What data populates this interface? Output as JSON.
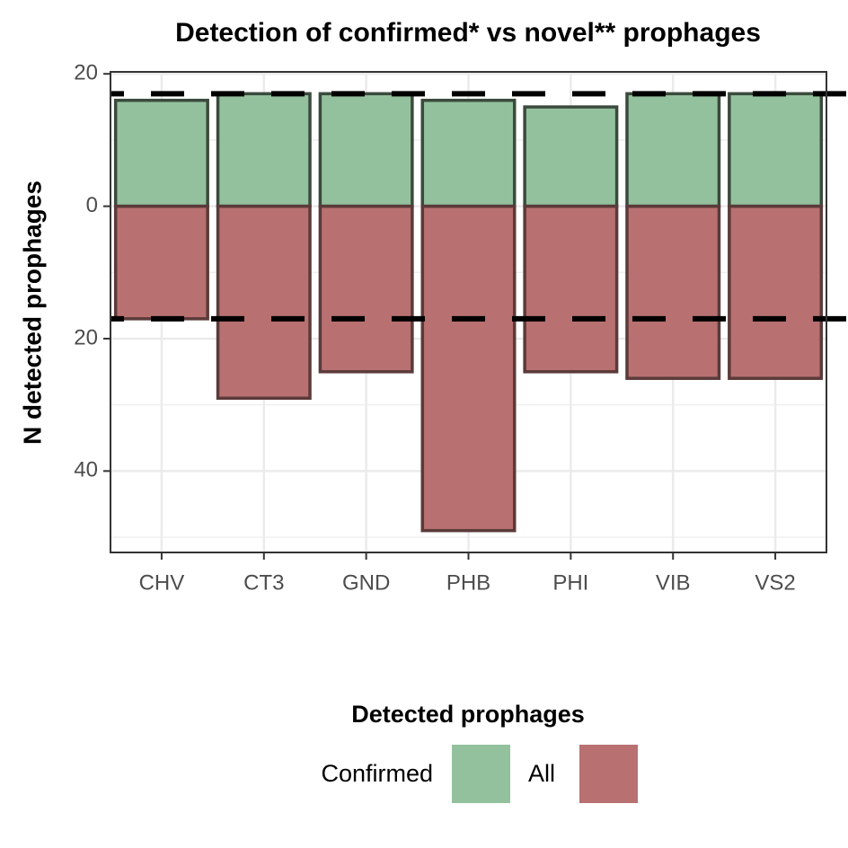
{
  "chart_data": {
    "type": "bar",
    "title": "Detection of confirmed* vs novel** prophages",
    "y_label": "N detected prophages",
    "categories": [
      "CHV",
      "CT3",
      "GND",
      "PHB",
      "PHI",
      "VIB",
      "VS2"
    ],
    "series": [
      {
        "name": "Confirmed",
        "color": "#93c19d",
        "values": [
          16,
          17,
          17,
          16,
          15,
          17,
          17
        ]
      },
      {
        "name": "All",
        "color": "#b87070",
        "values": [
          -17,
          -29,
          -25,
          -49,
          -25,
          -26,
          -26
        ]
      }
    ],
    "ylim": [
      -52.3,
      20.3
    ],
    "yticks": [
      20,
      0,
      {
        "value": -20,
        "label": "20"
      },
      {
        "value": -40,
        "label": "40"
      }
    ],
    "y_minor_grid": [
      10,
      -10,
      -30,
      -50
    ],
    "reference_lines": [
      17,
      -17
    ],
    "grid": true,
    "legend_title": "Detected prophages",
    "legend_position": "bottom"
  }
}
